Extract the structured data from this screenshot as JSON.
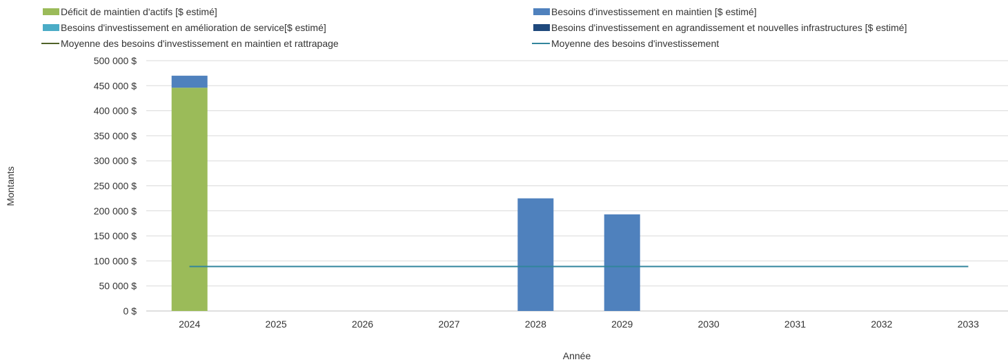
{
  "chart_data": {
    "type": "bar",
    "title": "",
    "xlabel": "Année",
    "ylabel": "Montants",
    "ylim": [
      0,
      500000
    ],
    "yticks": [
      "0 $",
      "50 000 $",
      "100 000 $",
      "150 000 $",
      "200 000 $",
      "250 000 $",
      "300 000 $",
      "350 000 $",
      "400 000 $",
      "450 000 $",
      "500 000 $"
    ],
    "categories": [
      "2024",
      "2025",
      "2026",
      "2027",
      "2028",
      "2029",
      "2030",
      "2031",
      "2032",
      "2033"
    ],
    "grid": true,
    "legend_position": "top",
    "series": [
      {
        "name": "Déficit de maintien d'actifs [$ estimé]",
        "kind": "bar",
        "color": "#9bbb59",
        "values": [
          446000,
          0,
          0,
          0,
          0,
          0,
          0,
          0,
          0,
          0
        ]
      },
      {
        "name": "Besoins d'investissement en maintien [$ estimé]",
        "kind": "bar",
        "color": "#4f81bd",
        "values": [
          24000,
          0,
          0,
          0,
          225000,
          193000,
          0,
          0,
          0,
          0
        ]
      },
      {
        "name": "Besoins d'investissement en amélioration de service[$ estimé]",
        "kind": "bar",
        "color": "#4bacc6",
        "values": [
          0,
          0,
          0,
          0,
          0,
          0,
          0,
          0,
          0,
          0
        ]
      },
      {
        "name": "Besoins d'investissement en agrandissement et nouvelles infrastructures [$ estimé]",
        "kind": "bar",
        "color": "#1f497d",
        "values": [
          0,
          0,
          0,
          0,
          0,
          0,
          0,
          0,
          0,
          0
        ]
      },
      {
        "name": "Moyenne des besoins d'investissement en maintien et rattrapage",
        "kind": "line",
        "color": "#4f6228",
        "values": [
          88800,
          88800,
          88800,
          88800,
          88800,
          88800,
          88800,
          88800,
          88800,
          88800
        ]
      },
      {
        "name": "Moyenne des besoins d'investissement",
        "kind": "line",
        "color": "#31859c",
        "values": [
          88800,
          88800,
          88800,
          88800,
          88800,
          88800,
          88800,
          88800,
          88800,
          88800
        ]
      }
    ]
  }
}
